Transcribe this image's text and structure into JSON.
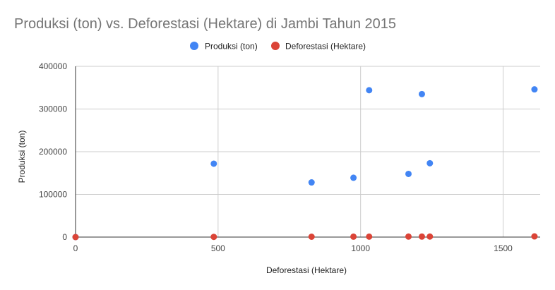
{
  "chart_data": {
    "type": "scatter",
    "title": "Produksi (ton) vs. Deforestasi (Hektare) di Jambi Tahun 2015",
    "xlabel": "Deforestasi (Hektare)",
    "ylabel": "Produksi (ton)",
    "xlim": [
      0,
      1630
    ],
    "ylim": [
      0,
      400000
    ],
    "x_ticks": [
      0,
      500,
      1000,
      1500
    ],
    "x_tick_labels": [
      "0",
      "500",
      "1000",
      "1500"
    ],
    "y_ticks": [
      0,
      100000,
      200000,
      300000,
      400000
    ],
    "y_tick_labels": [
      "0",
      "100000",
      "200000",
      "300000",
      "400000"
    ],
    "grid": true,
    "legend_position": "top",
    "series": [
      {
        "name": "Produksi (ton)",
        "color": "#4285f4",
        "points": [
          [
            0,
            0
          ],
          [
            485,
            172000
          ],
          [
            828,
            128000
          ],
          [
            975,
            139000
          ],
          [
            1030,
            344000
          ],
          [
            1168,
            148000
          ],
          [
            1215,
            335000
          ],
          [
            1243,
            173000
          ],
          [
            1610,
            346000
          ]
        ]
      },
      {
        "name": "Deforestasi (Hektare)",
        "color": "#db4437",
        "points": [
          [
            0,
            0
          ],
          [
            485,
            485
          ],
          [
            828,
            828
          ],
          [
            975,
            975
          ],
          [
            1030,
            1030
          ],
          [
            1168,
            1168
          ],
          [
            1215,
            1215
          ],
          [
            1243,
            1243
          ],
          [
            1610,
            1610
          ]
        ]
      }
    ]
  }
}
